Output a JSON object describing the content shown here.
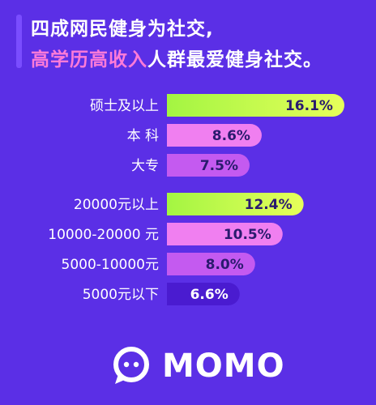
{
  "headline": {
    "line1": "四成网民健身为社交,",
    "line2_highlight": "高学历高收入",
    "line2_rest": "人群最爱健身社交。"
  },
  "chart_data": [
    {
      "type": "bar",
      "orientation": "horizontal",
      "categories": [
        "硕士及以上",
        "本 科",
        "大专"
      ],
      "values": [
        16.1,
        8.6,
        7.5
      ],
      "value_labels": [
        "16.1%",
        "8.6%",
        "7.5%"
      ]
    },
    {
      "type": "bar",
      "orientation": "horizontal",
      "categories": [
        "20000元以上",
        "10000-20000 元",
        "5000-10000元",
        "5000元以下"
      ],
      "values": [
        12.4,
        10.5,
        8.0,
        6.6
      ],
      "value_labels": [
        "12.4%",
        "10.5%",
        "8.0%",
        "6.6%"
      ]
    }
  ],
  "colors": {
    "background": "#5b2fe6",
    "highlight_text": "#ff7bd8",
    "bar_top_start": "#a3f542",
    "bar_top_end": "#e7ff5a",
    "bar_pink": "#f07ff0",
    "bar_magenta": "#c45af0",
    "bar_purple": "#9c46ea",
    "bar_dark": "#4a1bd0"
  },
  "logo": {
    "text": "MOMO",
    "icon": "momo-chat-bubble-icon"
  }
}
